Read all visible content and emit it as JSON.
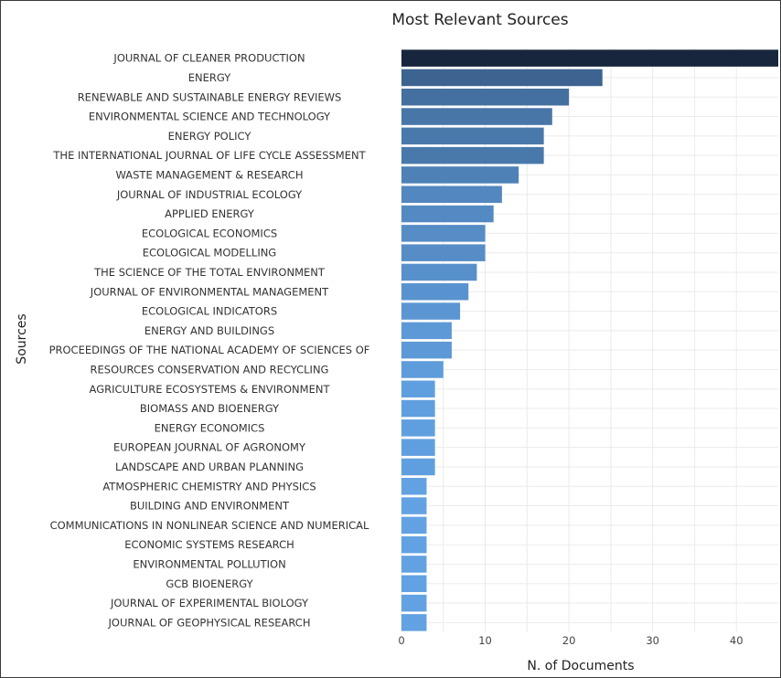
{
  "chart_data": {
    "type": "bar",
    "orientation": "horizontal",
    "title": "Most Relevant Sources",
    "xlabel": "N. of Documents",
    "ylabel": "Sources",
    "xlim": [
      0,
      45
    ],
    "x_ticks": [
      0,
      10,
      20,
      30,
      40
    ],
    "grid": true,
    "categories": [
      "JOURNAL OF CLEANER PRODUCTION",
      "ENERGY",
      "RENEWABLE AND SUSTAINABLE ENERGY REVIEWS",
      "ENVIRONMENTAL SCIENCE AND TECHNOLOGY",
      "ENERGY POLICY",
      "THE INTERNATIONAL JOURNAL OF LIFE CYCLE ASSESSMENT",
      "WASTE MANAGEMENT & RESEARCH",
      "JOURNAL OF INDUSTRIAL ECOLOGY",
      "APPLIED ENERGY",
      "ECOLOGICAL ECONOMICS",
      "ECOLOGICAL MODELLING",
      "THE SCIENCE OF THE TOTAL ENVIRONMENT",
      "JOURNAL OF ENVIRONMENTAL MANAGEMENT",
      "ECOLOGICAL INDICATORS",
      "ENERGY AND BUILDINGS",
      "PROCEEDINGS OF THE NATIONAL ACADEMY OF SCIENCES OF",
      "RESOURCES CONSERVATION AND RECYCLING",
      "AGRICULTURE ECOSYSTEMS & ENVIRONMENT",
      "BIOMASS AND BIOENERGY",
      "ENERGY ECONOMICS",
      "EUROPEAN JOURNAL OF AGRONOMY",
      "LANDSCAPE AND URBAN PLANNING",
      "ATMOSPHERIC CHEMISTRY AND PHYSICS",
      "BUILDING AND ENVIRONMENT",
      "COMMUNICATIONS IN NONLINEAR SCIENCE AND NUMERICAL",
      "ECONOMIC SYSTEMS RESEARCH",
      "ENVIRONMENTAL POLLUTION",
      "GCB BIOENERGY",
      "JOURNAL OF EXPERIMENTAL BIOLOGY",
      "JOURNAL OF GEOPHYSICAL RESEARCH"
    ],
    "values": [
      45,
      24,
      20,
      18,
      17,
      17,
      14,
      12,
      11,
      10,
      10,
      9,
      8,
      7,
      6,
      6,
      5,
      4,
      4,
      4,
      4,
      4,
      3,
      3,
      3,
      3,
      3,
      3,
      3,
      3
    ],
    "color_scale": {
      "low": "#62a2e3",
      "high": "#17263c"
    }
  }
}
